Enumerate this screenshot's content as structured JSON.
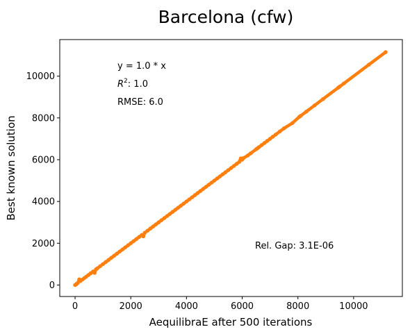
{
  "chart_data": {
    "type": "scatter",
    "title": "Barcelona (cfw)",
    "xlabel": "AequilibraE after 500 iterations",
    "ylabel": "Best known solution",
    "xlim": [
      -550,
      11750
    ],
    "ylim": [
      -550,
      11750
    ],
    "xticks": [
      0,
      2000,
      4000,
      6000,
      8000,
      10000
    ],
    "yticks": [
      0,
      2000,
      4000,
      6000,
      8000,
      10000
    ],
    "grid": false,
    "annotations": {
      "equation": "y = 1.0 * x",
      "r2_prefix": "R",
      "r2_sup": "2",
      "r2_value": ":  1.0",
      "rmse": "RMSE: 6.0",
      "rel_gap": "Rel. Gap: 3.1E-06"
    },
    "series": [
      {
        "type": "line",
        "color": "#1f77b4",
        "x": [
          0,
          11150
        ],
        "y": [
          0,
          11150
        ]
      },
      {
        "type": "scatter",
        "color": "#ff7f0e",
        "x": [
          0,
          30,
          60,
          100,
          150,
          190,
          260,
          330,
          400,
          480,
          560,
          650,
          700,
          750,
          800,
          900,
          1000,
          1100,
          1200,
          1300,
          1400,
          1500,
          1600,
          1700,
          1800,
          1900,
          2000,
          2100,
          2200,
          2300,
          2400,
          2450,
          2500,
          2600,
          2700,
          2800,
          2900,
          3000,
          3100,
          3200,
          3300,
          3400,
          3500,
          3600,
          3700,
          3800,
          3900,
          4000,
          4100,
          4200,
          4300,
          4400,
          4500,
          4600,
          4700,
          4800,
          4900,
          5000,
          5100,
          5200,
          5300,
          5400,
          5500,
          5600,
          5700,
          5800,
          5900,
          5950,
          6000,
          6050,
          6200,
          6300,
          6500,
          6550,
          6600,
          6700,
          6800,
          6900,
          7000,
          7100,
          7200,
          7350,
          7500,
          7800,
          8050,
          8100,
          8300,
          8600,
          8900,
          9450,
          9500,
          9650,
          10550,
          11150
        ],
        "y": [
          0,
          20,
          60,
          100,
          270,
          190,
          260,
          330,
          400,
          480,
          560,
          650,
          580,
          750,
          800,
          900,
          1000,
          1100,
          1200,
          1300,
          1400,
          1500,
          1600,
          1700,
          1800,
          1900,
          2000,
          2100,
          2200,
          2300,
          2400,
          2330,
          2500,
          2600,
          2700,
          2800,
          2900,
          3000,
          3100,
          3200,
          3300,
          3400,
          3500,
          3600,
          3700,
          3800,
          3900,
          4000,
          4100,
          4200,
          4300,
          4400,
          4500,
          4600,
          4700,
          4800,
          4900,
          5000,
          5100,
          5200,
          5300,
          5400,
          5500,
          5600,
          5700,
          5800,
          5900,
          6060,
          6000,
          6080,
          6200,
          6300,
          6500,
          6550,
          6600,
          6700,
          6800,
          6900,
          7000,
          7100,
          7200,
          7350,
          7500,
          7750,
          8050,
          8100,
          8300,
          8600,
          8900,
          9450,
          9500,
          9650,
          10550,
          11150
        ]
      }
    ]
  }
}
